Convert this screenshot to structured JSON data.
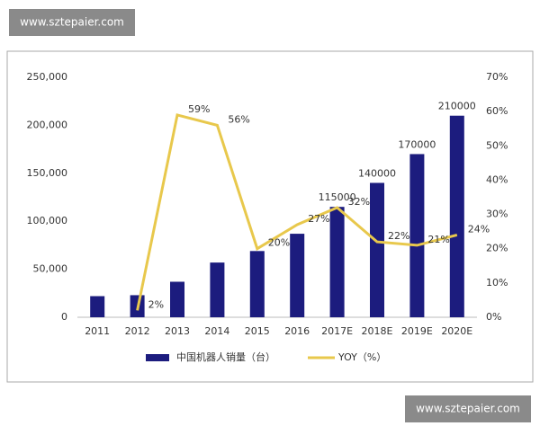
{
  "watermarks": [
    "www.sztepaier.com",
    "www.sztepaier.com"
  ],
  "chart_data": {
    "type": "bar",
    "categories": [
      "2011",
      "2012",
      "2013",
      "2014",
      "2015",
      "2016",
      "2017E",
      "2018E",
      "2019E",
      "2020E"
    ],
    "series": [
      {
        "name": "中国机器人销量（台）",
        "type": "bar",
        "color": "#1c1c7e",
        "values": [
          22000,
          23000,
          37000,
          57000,
          69000,
          87000,
          115000,
          140000,
          170000,
          210000
        ],
        "value_labels": [
          null,
          null,
          null,
          null,
          null,
          null,
          "115000",
          "140000",
          "170000",
          "210000"
        ]
      },
      {
        "name": "YOY（%）",
        "type": "line",
        "axis": "y2",
        "color": "#e8c84c",
        "values": [
          null,
          2,
          59,
          56,
          20,
          27,
          32,
          22,
          21,
          24
        ],
        "value_labels": [
          null,
          "2%",
          "59%",
          "56%",
          "20%",
          "27%",
          "32%",
          "22%",
          "21%",
          "24%"
        ]
      }
    ],
    "ylim": [
      0,
      250000
    ],
    "yticks": [
      0,
      {
        "value": 50000,
        "label": "50,000"
      },
      {
        "value": 100000,
        "label": "100,000"
      },
      {
        "value": 150000,
        "label": "150,000"
      },
      {
        "value": 200000,
        "label": "200,000"
      },
      {
        "value": 250000,
        "label": "250,000"
      }
    ],
    "y2lim": [
      0,
      70
    ],
    "y2ticks": [
      {
        "value": 0,
        "label": "0%"
      },
      {
        "value": 10,
        "label": "10%"
      },
      {
        "value": 20,
        "label": "20%"
      },
      {
        "value": 30,
        "label": "30%"
      },
      {
        "value": 40,
        "label": "40%"
      },
      {
        "value": 50,
        "label": "50%"
      },
      {
        "value": 60,
        "label": "60%"
      },
      {
        "value": 70,
        "label": "70%"
      }
    ],
    "grid": false,
    "legend": "bottom"
  }
}
